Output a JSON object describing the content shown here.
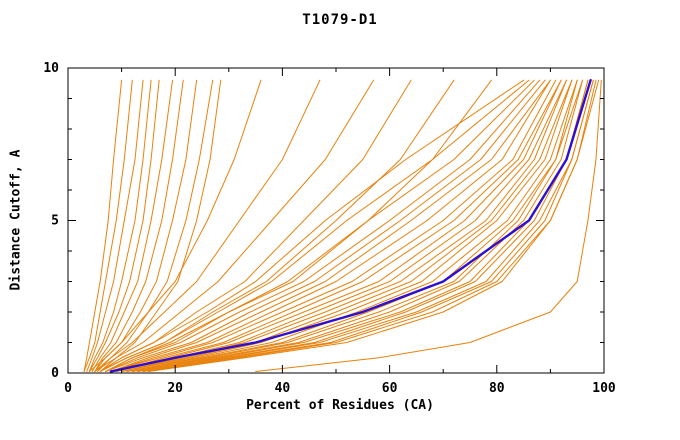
{
  "colors": {
    "model": "#e8820d",
    "highlight": "#2f0ed0",
    "axis": "#000000",
    "background": "#ffffff"
  },
  "chart_data": {
    "type": "line",
    "title": "T1079-D1",
    "xlabel": "Percent of Residues (CA)",
    "ylabel": "Distance Cutoff, A",
    "xlim": [
      0,
      100
    ],
    "ylim": [
      0,
      10
    ],
    "xticks": [
      0,
      20,
      40,
      60,
      80,
      100
    ],
    "xticks_minor": [
      10,
      30,
      50,
      70,
      90
    ],
    "yticks": [
      0,
      5,
      10
    ],
    "yticks_minor": [
      1,
      2,
      3,
      4,
      6,
      7,
      8,
      9
    ],
    "grid": false,
    "legend": null,
    "y_samples": [
      0.05,
      0.5,
      1,
      2,
      3,
      5,
      7,
      9.6
    ],
    "series": [
      {
        "name": "model-01",
        "role": "model",
        "x": [
          3,
          3.5,
          4,
          5,
          6,
          7.5,
          8.5,
          10
        ]
      },
      {
        "name": "model-02",
        "role": "model",
        "x": [
          3,
          4,
          5,
          6,
          7,
          9,
          10.5,
          12
        ]
      },
      {
        "name": "model-03",
        "role": "model",
        "x": [
          3.5,
          4.5,
          5.5,
          7,
          8.5,
          10.5,
          12.5,
          14
        ]
      },
      {
        "name": "model-04",
        "role": "model",
        "x": [
          4,
          5,
          6.5,
          8.5,
          10,
          12.5,
          14,
          15.5
        ]
      },
      {
        "name": "model-05",
        "role": "model",
        "x": [
          4,
          5.5,
          7,
          9.5,
          11.5,
          14,
          15.5,
          17
        ]
      },
      {
        "name": "model-06",
        "role": "model",
        "x": [
          4.5,
          6,
          8,
          10.5,
          13,
          15.5,
          17.5,
          19.5
        ]
      },
      {
        "name": "model-07",
        "role": "model",
        "x": [
          5,
          6.5,
          9,
          12,
          14.5,
          17.5,
          19.5,
          21.5
        ]
      },
      {
        "name": "model-08",
        "role": "model",
        "x": [
          5,
          7,
          10,
          13.5,
          16.5,
          19.5,
          22,
          24
        ]
      },
      {
        "name": "model-09",
        "role": "model",
        "x": [
          5.5,
          8,
          11,
          15,
          18.5,
          22,
          24.5,
          27
        ]
      },
      {
        "name": "model-10",
        "role": "model",
        "x": [
          6,
          9,
          12.5,
          16.5,
          20.5,
          24,
          26.5,
          28.5
        ]
      },
      {
        "name": "model-11",
        "role": "model",
        "x": [
          4,
          7,
          10,
          15,
          20,
          26,
          31,
          36
        ]
      },
      {
        "name": "model-12",
        "role": "model",
        "x": [
          5,
          8,
          12,
          18,
          24,
          32,
          40,
          47
        ]
      },
      {
        "name": "model-13",
        "role": "model",
        "x": [
          5,
          9,
          14,
          21,
          28,
          38,
          48,
          57
        ]
      },
      {
        "name": "model-14",
        "role": "model",
        "x": [
          6,
          10,
          16,
          24,
          33,
          44,
          55,
          64
        ]
      },
      {
        "name": "model-15",
        "role": "model",
        "x": [
          6,
          11,
          18,
          27,
          37,
          50,
          62,
          72
        ]
      },
      {
        "name": "model-16",
        "role": "model",
        "x": [
          7,
          12,
          19,
          30,
          42,
          56,
          68,
          79
        ]
      },
      {
        "name": "model-17",
        "role": "model",
        "x": [
          6,
          10,
          16,
          26,
          35,
          48,
          63,
          85
        ]
      },
      {
        "name": "model-18",
        "role": "model",
        "x": [
          6,
          11,
          18,
          28,
          38,
          52,
          68,
          86
        ]
      },
      {
        "name": "model-19",
        "role": "model",
        "x": [
          7,
          12,
          20,
          30,
          41,
          56,
          72,
          87
        ]
      },
      {
        "name": "model-20",
        "role": "model",
        "x": [
          7,
          13,
          21,
          32,
          44,
          60,
          75,
          88
        ]
      },
      {
        "name": "model-21",
        "role": "model",
        "x": [
          7,
          14,
          23,
          34,
          46,
          62,
          77,
          89
        ]
      },
      {
        "name": "model-22",
        "role": "model",
        "x": [
          8,
          15,
          24,
          36,
          48,
          64,
          79,
          90
        ]
      },
      {
        "name": "model-23",
        "role": "model",
        "x": [
          8,
          16,
          26,
          38,
          50,
          67,
          81,
          90
        ]
      },
      {
        "name": "model-24",
        "role": "model",
        "x": [
          8,
          17,
          27,
          40,
          53,
          70,
          83,
          91
        ]
      },
      {
        "name": "model-25",
        "role": "model",
        "x": [
          9,
          18,
          29,
          42,
          55,
          72,
          84,
          92
        ]
      },
      {
        "name": "model-26",
        "role": "model",
        "x": [
          9,
          19,
          30,
          44,
          58,
          74,
          85,
          92
        ]
      },
      {
        "name": "model-27",
        "role": "model",
        "x": [
          9,
          20,
          32,
          46,
          60,
          76,
          86,
          93
        ]
      },
      {
        "name": "model-28",
        "role": "model",
        "x": [
          10,
          21,
          33,
          48,
          62,
          78,
          87,
          93
        ]
      },
      {
        "name": "model-29",
        "role": "model",
        "x": [
          10,
          22,
          35,
          50,
          64,
          79,
          88,
          94
        ]
      },
      {
        "name": "model-30",
        "role": "model",
        "x": [
          10,
          23,
          36,
          52,
          66,
          80,
          89,
          94
        ]
      },
      {
        "name": "model-31",
        "role": "model",
        "x": [
          11,
          24,
          38,
          54,
          68,
          82,
          90,
          95
        ]
      },
      {
        "name": "model-32",
        "role": "model",
        "x": [
          11,
          25,
          40,
          56,
          70,
          83,
          91,
          95
        ]
      },
      {
        "name": "model-33",
        "role": "model",
        "x": [
          12,
          26,
          41,
          58,
          72,
          84,
          91,
          96
        ]
      },
      {
        "name": "model-34",
        "role": "model",
        "x": [
          12,
          27,
          43,
          60,
          73,
          85,
          92,
          96
        ]
      },
      {
        "name": "model-35",
        "role": "model",
        "x": [
          13,
          28,
          44,
          62,
          75,
          86,
          93,
          97
        ]
      },
      {
        "name": "model-36",
        "role": "model",
        "x": [
          13,
          29,
          46,
          63,
          76,
          87,
          93,
          97
        ]
      },
      {
        "name": "model-37",
        "role": "model",
        "x": [
          14,
          30,
          47,
          65,
          78,
          88,
          94,
          98
        ]
      },
      {
        "name": "model-38",
        "role": "model",
        "x": [
          14,
          31,
          49,
          66,
          79,
          89,
          94,
          98
        ]
      },
      {
        "name": "model-39",
        "role": "model",
        "x": [
          15,
          32,
          50,
          68,
          80,
          90,
          95,
          98.5
        ]
      },
      {
        "name": "model-40",
        "role": "model",
        "x": [
          15,
          33,
          52,
          70,
          81,
          90,
          95,
          99
        ]
      },
      {
        "name": "model-outlier",
        "role": "model",
        "x": [
          35,
          58,
          75,
          90,
          95,
          97,
          98.5,
          99.5
        ]
      },
      {
        "name": "highlighted-model",
        "role": "highlight",
        "x": [
          8,
          20,
          35,
          55,
          70,
          86,
          93,
          97.5
        ]
      }
    ]
  }
}
